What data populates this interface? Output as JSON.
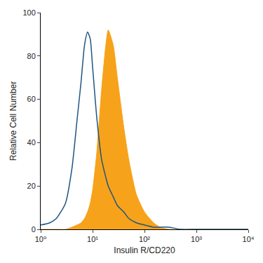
{
  "chart_data": {
    "type": "area",
    "x_label": "Insulin R/CD220",
    "y_label": "Relative Cell Number",
    "log": "x",
    "grid": false,
    "x": [
      1,
      1.5,
      2,
      3,
      4,
      5,
      6,
      7,
      8,
      9,
      10,
      12,
      15,
      18,
      20,
      25,
      30,
      40,
      50,
      70,
      100,
      150,
      200,
      300,
      500,
      1000,
      2000,
      5000,
      10000
    ],
    "series": [
      {
        "type": "area",
        "color": "#f7a21b",
        "values": [
          0,
          0,
          0,
          0,
          1,
          2,
          3,
          5,
          8,
          12,
          18,
          35,
          65,
          85,
          92,
          85,
          70,
          47,
          32,
          16,
          8,
          3,
          1,
          0,
          0,
          0,
          0,
          0,
          0
        ]
      },
      {
        "type": "line",
        "color": "#1f5580",
        "values": [
          2,
          3,
          5,
          12,
          28,
          50,
          68,
          85,
          91,
          88,
          75,
          52,
          32,
          24,
          20,
          15,
          11,
          8,
          5,
          3,
          2,
          1,
          1,
          1,
          0,
          0,
          0,
          0,
          0
        ]
      }
    ],
    "xlim": [
      1,
      10000
    ],
    "xticks": [
      {
        "value": 1,
        "label": "10⁰"
      },
      {
        "value": 10,
        "label": "10¹"
      },
      {
        "value": 100,
        "label": "10²"
      },
      {
        "value": 1000,
        "label": "10³"
      },
      {
        "value": 10000,
        "label": "10⁴"
      }
    ],
    "ylim": [
      0,
      100
    ],
    "yticks": [
      0,
      20,
      40,
      60,
      80,
      100
    ]
  }
}
